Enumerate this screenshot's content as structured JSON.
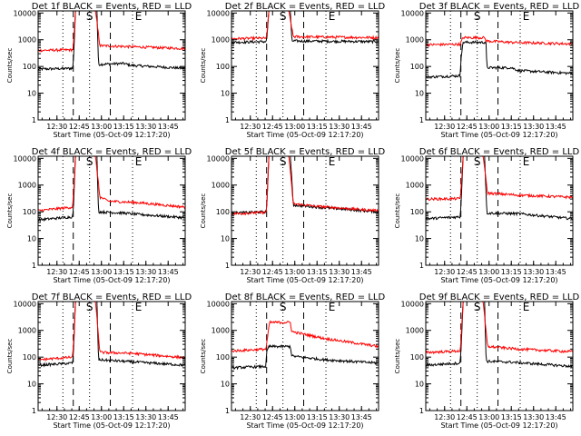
{
  "panels_meta": {
    "common_ylabel": "Counts/sec",
    "common_xlabel": "Start Time (05-Oct-09 12:17:20)",
    "x_tick_labels": [
      "12:30",
      "12:45",
      "13:00",
      "13:15",
      "13:30",
      "13:45"
    ],
    "x_tick_minutes": [
      30,
      45,
      60,
      75,
      90,
      105
    ],
    "y_tick_labels": [
      "1",
      "10",
      "100",
      "1000",
      "10000"
    ]
  },
  "chart_data": [
    {
      "type": "line",
      "title": "Det 1f BLACK = Events, RED = LLD",
      "xlabel": "Start Time (05-Oct-09 12:17:20)",
      "ylabel": "Counts/sec",
      "x_unit": "minutes after 12:00",
      "xlim": [
        17.3,
        116.5
      ],
      "ylim": [
        1,
        12000
      ],
      "y_scale": "log",
      "markers": {
        "S": 52,
        "E": 85
      },
      "vlines_dotted": [
        34,
        52,
        81
      ],
      "vlines_dashed": [
        41,
        66
      ],
      "series": [
        {
          "name": "Events",
          "color": "#000000",
          "points": [
            [
              17.3,
              80
            ],
            [
              40.5,
              85
            ],
            [
              41,
              120
            ],
            [
              42.5,
              12000
            ],
            [
              57,
              12000
            ],
            [
              58,
              120
            ],
            [
              75,
              130
            ],
            [
              80,
              110
            ],
            [
              116.5,
              85
            ]
          ]
        },
        {
          "name": "LLD",
          "color": "#ff0000",
          "points": [
            [
              17.3,
              400
            ],
            [
              40.5,
              420
            ],
            [
              41,
              500
            ],
            [
              42.5,
              12000
            ],
            [
              56,
              12000
            ],
            [
              59,
              600
            ],
            [
              75,
              560
            ],
            [
              116.5,
              470
            ]
          ]
        }
      ]
    },
    {
      "type": "line",
      "title": "Det 2f BLACK = Events, RED = LLD",
      "xlabel": "Start Time (05-Oct-09 12:17:20)",
      "ylabel": "Counts/sec",
      "x_unit": "minutes after 12:00",
      "xlim": [
        17.3,
        116.5
      ],
      "ylim": [
        1,
        12000
      ],
      "y_scale": "log",
      "markers": {
        "S": 52,
        "E": 85
      },
      "vlines_dotted": [
        34,
        52,
        81
      ],
      "vlines_dashed": [
        41,
        66
      ],
      "series": [
        {
          "name": "Events",
          "color": "#000000",
          "points": [
            [
              17.3,
              800
            ],
            [
              40.5,
              850
            ],
            [
              41,
              900
            ],
            [
              42.5,
              12000
            ],
            [
              57,
              12000
            ],
            [
              58,
              900
            ],
            [
              116.5,
              850
            ]
          ]
        },
        {
          "name": "LLD",
          "color": "#ff0000",
          "points": [
            [
              17.3,
              1100
            ],
            [
              40.5,
              1150
            ],
            [
              41,
              1200
            ],
            [
              42.5,
              12000
            ],
            [
              56,
              12000
            ],
            [
              59,
              1300
            ],
            [
              116.5,
              1200
            ]
          ]
        }
      ]
    },
    {
      "type": "line",
      "title": "Det 3f BLACK = Events, RED = LLD",
      "xlabel": "Start Time (05-Oct-09 12:17:20)",
      "ylabel": "Counts/sec",
      "x_unit": "minutes after 12:00",
      "xlim": [
        17.3,
        116.5
      ],
      "ylim": [
        1,
        12000
      ],
      "y_scale": "log",
      "markers": {
        "S": 52,
        "E": 85
      },
      "vlines_dotted": [
        34,
        52,
        81
      ],
      "vlines_dashed": [
        41,
        66
      ],
      "series": [
        {
          "name": "Events",
          "color": "#000000",
          "points": [
            [
              17.3,
              40
            ],
            [
              40.5,
              45
            ],
            [
              41,
              200
            ],
            [
              42.5,
              800
            ],
            [
              58,
              800
            ],
            [
              58.5,
              90
            ],
            [
              75,
              90
            ],
            [
              80,
              70
            ],
            [
              116.5,
              55
            ]
          ]
        },
        {
          "name": "LLD",
          "color": "#ff0000",
          "points": [
            [
              17.3,
              650
            ],
            [
              40.5,
              680
            ],
            [
              41,
              800
            ],
            [
              42.5,
              1200
            ],
            [
              57,
              1200
            ],
            [
              58,
              900
            ],
            [
              75,
              800
            ],
            [
              116.5,
              700
            ]
          ]
        }
      ]
    },
    {
      "type": "line",
      "title": "Det 4f BLACK = Events, RED = LLD",
      "xlabel": "Start Time (05-Oct-09 12:17:20)",
      "ylabel": "Counts/sec",
      "x_unit": "minutes after 12:00",
      "xlim": [
        17.3,
        116.5
      ],
      "ylim": [
        1,
        12000
      ],
      "y_scale": "log",
      "markers": {
        "S": 52,
        "E": 85
      },
      "vlines_dotted": [
        34,
        52,
        81
      ],
      "vlines_dashed": [
        41,
        66
      ],
      "series": [
        {
          "name": "Events",
          "color": "#000000",
          "points": [
            [
              17.3,
              50
            ],
            [
              40.5,
              65
            ],
            [
              41,
              100
            ],
            [
              42.5,
              12000
            ],
            [
              57,
              12000
            ],
            [
              58,
              100
            ],
            [
              75,
              90
            ],
            [
              85,
              80
            ],
            [
              116.5,
              60
            ]
          ]
        },
        {
          "name": "LLD",
          "color": "#ff0000",
          "points": [
            [
              17.3,
              110
            ],
            [
              40.5,
              150
            ],
            [
              41,
              300
            ],
            [
              42.5,
              12000
            ],
            [
              56,
              12000
            ],
            [
              59,
              350
            ],
            [
              65,
              250
            ],
            [
              85,
              220
            ],
            [
              116.5,
              150
            ]
          ]
        }
      ]
    },
    {
      "type": "line",
      "title": "Det 5f BLACK = Events, RED = LLD",
      "xlabel": "Start Time (05-Oct-09 12:17:20)",
      "ylabel": "Counts/sec",
      "x_unit": "minutes after 12:00",
      "xlim": [
        17.3,
        116.5
      ],
      "ylim": [
        1,
        12000
      ],
      "y_scale": "log",
      "markers": {
        "S": 52,
        "E": 85
      },
      "vlines_dotted": [
        34,
        52,
        81
      ],
      "vlines_dashed": [
        41,
        66
      ],
      "series": [
        {
          "name": "Events",
          "color": "#000000",
          "points": [
            [
              17.3,
              90
            ],
            [
              40.5,
              100
            ],
            [
              41,
              120
            ],
            [
              42.5,
              12000
            ],
            [
              57,
              12000
            ],
            [
              59,
              180
            ],
            [
              75,
              150
            ],
            [
              116.5,
              100
            ]
          ]
        },
        {
          "name": "LLD",
          "color": "#ff0000",
          "points": [
            [
              17.3,
              85
            ],
            [
              40.5,
              95
            ],
            [
              41,
              120
            ],
            [
              42.5,
              12000
            ],
            [
              56,
              12000
            ],
            [
              59,
              200
            ],
            [
              75,
              160
            ],
            [
              116.5,
              110
            ]
          ]
        }
      ]
    },
    {
      "type": "line",
      "title": "Det 6f BLACK = Events, RED = LLD",
      "xlabel": "Start Time (05-Oct-09 12:17:20)",
      "ylabel": "Counts/sec",
      "x_unit": "minutes after 12:00",
      "xlim": [
        17.3,
        116.5
      ],
      "ylim": [
        1,
        12000
      ],
      "y_scale": "log",
      "markers": {
        "S": 52,
        "E": 85
      },
      "vlines_dotted": [
        34,
        52,
        81
      ],
      "vlines_dashed": [
        41,
        66
      ],
      "series": [
        {
          "name": "Events",
          "color": "#000000",
          "points": [
            [
              17.3,
              55
            ],
            [
              40.5,
              65
            ],
            [
              41,
              150
            ],
            [
              42.5,
              12000
            ],
            [
              57,
              12000
            ],
            [
              58.5,
              90
            ],
            [
              80,
              85
            ],
            [
              116.5,
              55
            ]
          ]
        },
        {
          "name": "LLD",
          "color": "#ff0000",
          "points": [
            [
              17.3,
              300
            ],
            [
              40.5,
              310
            ],
            [
              41,
              600
            ],
            [
              42.5,
              12000
            ],
            [
              56,
              12000
            ],
            [
              59,
              500
            ],
            [
              80,
              420
            ],
            [
              116.5,
              350
            ]
          ]
        }
      ]
    },
    {
      "type": "line",
      "title": "Det 7f BLACK = Events, RED = LLD",
      "xlabel": "Start Time (05-Oct-09 12:17:20)",
      "ylabel": "Counts/sec",
      "x_unit": "minutes after 12:00",
      "xlim": [
        17.3,
        116.5
      ],
      "ylim": [
        1,
        12000
      ],
      "y_scale": "log",
      "markers": {
        "S": 52,
        "E": 85
      },
      "vlines_dotted": [
        34,
        52,
        81
      ],
      "vlines_dashed": [
        41,
        66
      ],
      "series": [
        {
          "name": "Events",
          "color": "#000000",
          "points": [
            [
              17.3,
              50
            ],
            [
              40.5,
              60
            ],
            [
              41,
              100
            ],
            [
              42.5,
              12000
            ],
            [
              57,
              12000
            ],
            [
              58,
              80
            ],
            [
              75,
              70
            ],
            [
              116.5,
              50
            ]
          ]
        },
        {
          "name": "LLD",
          "color": "#ff0000",
          "points": [
            [
              17.3,
              80
            ],
            [
              40.5,
              100
            ],
            [
              41,
              200
            ],
            [
              42.5,
              12000
            ],
            [
              56,
              12000
            ],
            [
              59,
              150
            ],
            [
              80,
              140
            ],
            [
              116.5,
              95
            ]
          ]
        }
      ]
    },
    {
      "type": "line",
      "title": "Det 8f BLACK = Events, RED = LLD",
      "xlabel": "Start Time (05-Oct-09 12:17:20)",
      "ylabel": "Counts/sec",
      "x_unit": "minutes after 12:00",
      "xlim": [
        17.3,
        116.5
      ],
      "ylim": [
        1,
        12000
      ],
      "y_scale": "log",
      "markers": {
        "S": 52,
        "E": 85
      },
      "vlines_dotted": [
        34,
        52,
        81
      ],
      "vlines_dashed": [
        41,
        66
      ],
      "series": [
        {
          "name": "Events",
          "color": "#000000",
          "points": [
            [
              17.3,
              40
            ],
            [
              40.5,
              45
            ],
            [
              41,
              150
            ],
            [
              42.5,
              250
            ],
            [
              57,
              250
            ],
            [
              58,
              110
            ],
            [
              80,
              80
            ],
            [
              116.5,
              60
            ]
          ]
        },
        {
          "name": "LLD",
          "color": "#ff0000",
          "points": [
            [
              17.3,
              170
            ],
            [
              40.5,
              200
            ],
            [
              41,
              300
            ],
            [
              43,
              2000
            ],
            [
              57,
              2000
            ],
            [
              58,
              900
            ],
            [
              80,
              500
            ],
            [
              116.5,
              250
            ]
          ]
        }
      ]
    },
    {
      "type": "line",
      "title": "Det 9f BLACK = Events, RED = LLD",
      "xlabel": "Start Time (05-Oct-09 12:17:20)",
      "ylabel": "Counts/sec",
      "x_unit": "minutes after 12:00",
      "xlim": [
        17.3,
        116.5
      ],
      "ylim": [
        1,
        12000
      ],
      "y_scale": "log",
      "markers": {
        "S": 52,
        "E": 85
      },
      "vlines_dotted": [
        34,
        52,
        81
      ],
      "vlines_dashed": [
        41,
        66
      ],
      "series": [
        {
          "name": "Events",
          "color": "#000000",
          "points": [
            [
              17.3,
              50
            ],
            [
              40.5,
              60
            ],
            [
              41,
              150
            ],
            [
              42.5,
              12000
            ],
            [
              57,
              12000
            ],
            [
              58,
              70
            ],
            [
              75,
              65
            ],
            [
              116.5,
              45
            ]
          ]
        },
        {
          "name": "LLD",
          "color": "#ff0000",
          "points": [
            [
              17.3,
              150
            ],
            [
              40.5,
              170
            ],
            [
              41,
              400
            ],
            [
              42.5,
              12000
            ],
            [
              56,
              12000
            ],
            [
              59,
              250
            ],
            [
              80,
              200
            ],
            [
              116.5,
              160
            ]
          ]
        }
      ]
    }
  ]
}
